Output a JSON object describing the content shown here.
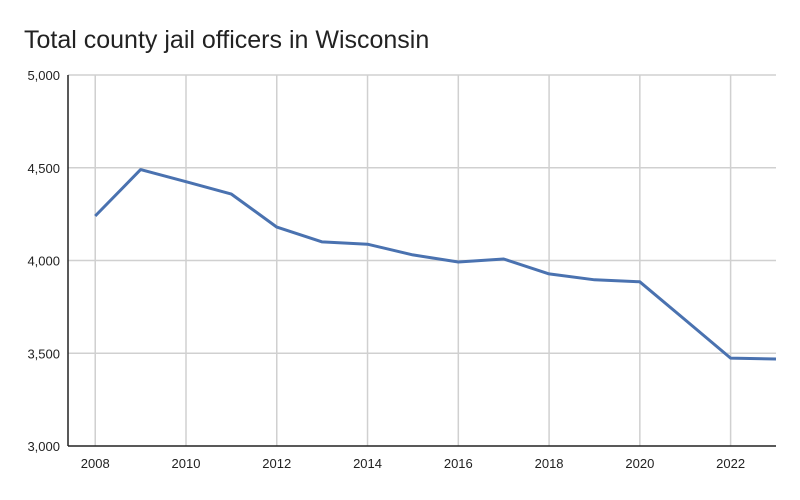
{
  "chart_data": {
    "type": "line",
    "title": "Total county jail officers in Wisconsin",
    "xlabel": "",
    "ylabel": "",
    "x": [
      2008,
      2009,
      2010,
      2011,
      2012,
      2013,
      2014,
      2015,
      2016,
      2017,
      2018,
      2019,
      2020,
      2021,
      2022,
      2023
    ],
    "values": [
      4240,
      4490,
      4425,
      4358,
      4180,
      4100,
      4088,
      4030,
      3992,
      4008,
      3928,
      3896,
      3885,
      3680,
      3474,
      3469
    ],
    "xlim": [
      2007.4,
      2023
    ],
    "ylim": [
      3000,
      5000
    ],
    "xticks": [
      "2008",
      "2010",
      "2012",
      "2014",
      "2016",
      "2018",
      "2020",
      "2022"
    ],
    "yticks": [
      "3,000",
      "3,500",
      "4,000",
      "4,500",
      "5,000"
    ],
    "grid": true,
    "legend": "none",
    "colors": {
      "line": "#4a72b0",
      "grid": "#d0d0d0",
      "axis": "#222222"
    }
  }
}
